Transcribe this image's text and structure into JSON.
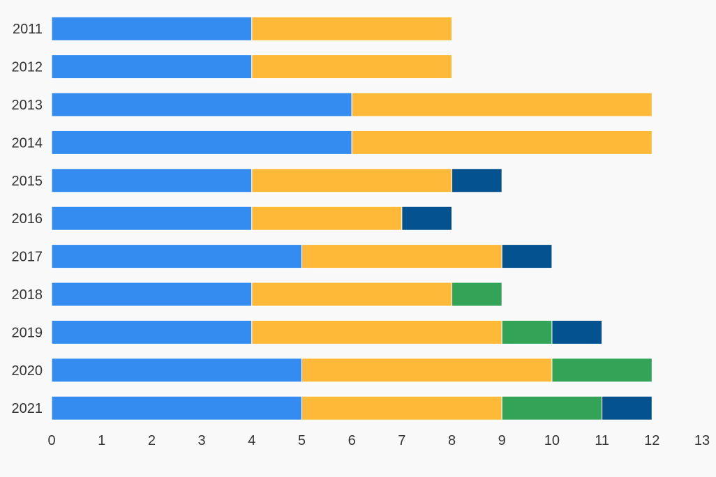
{
  "chart_data": {
    "type": "bar",
    "orientation": "horizontal",
    "stacked": true,
    "categories": [
      "2011",
      "2012",
      "2013",
      "2014",
      "2015",
      "2016",
      "2017",
      "2018",
      "2019",
      "2020",
      "2021"
    ],
    "series": [
      {
        "color": "#348CF0",
        "values": [
          4,
          4,
          6,
          6,
          4,
          4,
          5,
          4,
          4,
          5,
          5
        ]
      },
      {
        "color": "#FDB937",
        "values": [
          4,
          4,
          6,
          6,
          4,
          3,
          4,
          4,
          5,
          5,
          4
        ]
      },
      {
        "color": "#33A357",
        "values": [
          0,
          0,
          0,
          0,
          0,
          0,
          0,
          1,
          1,
          2,
          2
        ]
      },
      {
        "color": "#045390",
        "values": [
          0,
          0,
          0,
          0,
          1,
          1,
          1,
          0,
          1,
          0,
          1
        ]
      }
    ],
    "xticks": [
      0,
      1,
      2,
      3,
      4,
      5,
      6,
      7,
      8,
      9,
      10,
      11,
      12,
      13
    ],
    "xlim": [
      0,
      13
    ],
    "title": "",
    "xlabel": "",
    "ylabel": "",
    "grid": false,
    "legend": "none"
  }
}
